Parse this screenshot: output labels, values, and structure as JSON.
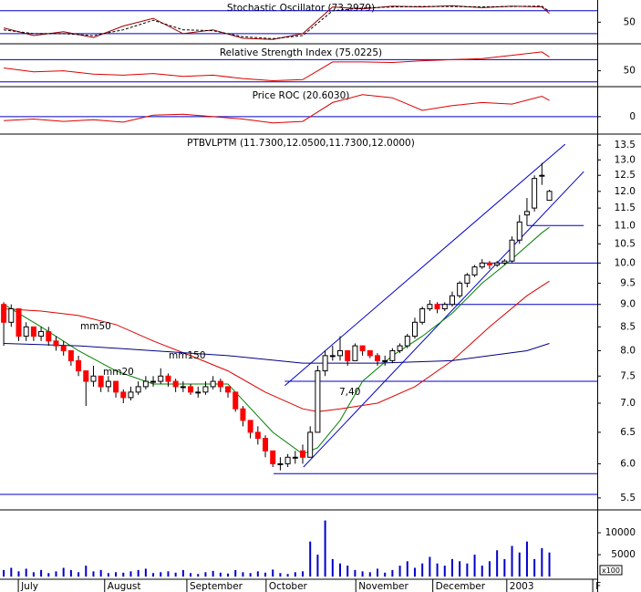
{
  "chart_data": [
    {
      "type": "line",
      "title": "Stochastic Oscillator (73.2979)",
      "xlim": [
        -0.5,
        79.4
      ],
      "ylim": [
        -4,
        108
      ],
      "yticks": [
        50
      ],
      "hlines": [
        80,
        20
      ],
      "hline_color": "#0000cc",
      "x": [
        0,
        4,
        8,
        12,
        16,
        20,
        24,
        28,
        32,
        36,
        40,
        44,
        48,
        52,
        56,
        60,
        64,
        68,
        72,
        73
      ],
      "series": [
        {
          "color": "#990000",
          "dashed": false,
          "values": [
            35,
            15,
            25,
            10,
            40,
            60,
            20,
            30,
            8,
            5,
            20,
            90,
            85,
            92,
            90,
            93,
            88,
            92,
            90,
            73
          ]
        },
        {
          "color": "#000000",
          "dashed": true,
          "values": [
            30,
            20,
            20,
            15,
            30,
            55,
            30,
            28,
            12,
            7,
            15,
            80,
            87,
            90,
            91,
            91,
            90,
            91,
            92,
            78
          ]
        }
      ]
    },
    {
      "type": "line",
      "title": "Relative Strength Index (75.0225)",
      "xlim": [
        -0.5,
        79.4
      ],
      "ylim": [
        23,
        97
      ],
      "yticks": [
        50
      ],
      "hlines": [
        70,
        30
      ],
      "hline_color": "#0000cc",
      "x": [
        0,
        4,
        8,
        12,
        16,
        20,
        24,
        28,
        32,
        36,
        40,
        44,
        48,
        52,
        56,
        60,
        64,
        68,
        72,
        73
      ],
      "series": [
        {
          "color": "#dd0000",
          "dashed": false,
          "values": [
            55,
            48,
            50,
            44,
            42,
            45,
            40,
            42,
            36,
            32,
            34,
            66,
            66,
            65,
            68,
            70,
            72,
            78,
            84,
            75.0225
          ]
        }
      ]
    },
    {
      "type": "line",
      "title": "Price ROC (20.6030)",
      "xlim": [
        -0.5,
        79.4
      ],
      "ylim": [
        -21,
        37
      ],
      "yticks": [
        0
      ],
      "hlines": [
        0
      ],
      "hline_color": "#0000cc",
      "x": [
        0,
        4,
        8,
        12,
        16,
        20,
        24,
        28,
        32,
        36,
        40,
        44,
        48,
        52,
        56,
        60,
        64,
        68,
        72,
        73
      ],
      "series": [
        {
          "color": "#dd0000",
          "dashed": false,
          "values": [
            -5,
            -3,
            -6,
            -4,
            -7,
            2,
            3,
            0,
            -3,
            -8,
            -6,
            18,
            28,
            24,
            8,
            14,
            18,
            16,
            26,
            20.603
          ]
        }
      ]
    },
    {
      "type": "candlestick",
      "title": "PTBVLPTM (11.7300,12.0500,11.7300,12.0000)",
      "log": true,
      "xlim": [
        -0.5,
        79.4
      ],
      "ylim": [
        5.36,
        13.85
      ],
      "yticks": [
        5.5,
        {
          "value": 6,
          "label": "6.0"
        },
        6.5,
        {
          "value": 7,
          "label": "7.0"
        },
        7.5,
        {
          "value": 8,
          "label": "8.0"
        },
        8.5,
        {
          "value": 9,
          "label": "9.0"
        },
        9.5,
        {
          "value": 10,
          "label": "10.0"
        },
        10.5,
        {
          "value": 11,
          "label": "11.0"
        },
        11.5,
        {
          "value": 12,
          "label": "12.0"
        },
        12.5,
        {
          "value": 13,
          "label": "13.0"
        },
        13.5
      ],
      "up_color": "#ffffff",
      "down_color": "#ff0000",
      "open": [
        9.0,
        8.6,
        8.9,
        8.3,
        8.5,
        8.3,
        8.4,
        8.2,
        8.1,
        8.0,
        7.8,
        7.6,
        7.4,
        7.5,
        7.3,
        7.4,
        7.2,
        7.1,
        7.2,
        7.3,
        7.4,
        7.4,
        7.5,
        7.4,
        7.3,
        7.3,
        7.2,
        7.2,
        7.3,
        7.4,
        7.3,
        7.2,
        6.9,
        6.7,
        6.5,
        6.4,
        6.2,
        6.0,
        6.0,
        6.1,
        6.2,
        6.1,
        6.5,
        7.6,
        7.9,
        7.9,
        8.0,
        7.8,
        8.1,
        8.0,
        7.9,
        7.8,
        7.8,
        8.0,
        8.1,
        8.3,
        8.6,
        8.9,
        9.0,
        8.9,
        9.0,
        9.2,
        9.5,
        9.7,
        9.9,
        10.0,
        9.95,
        10.0,
        10.05,
        10.6,
        11.3,
        11.5,
        12.5,
        11.73
      ],
      "high": [
        9.05,
        9.0,
        8.9,
        8.6,
        8.5,
        8.5,
        8.5,
        8.3,
        8.2,
        8.0,
        7.9,
        7.6,
        7.7,
        7.5,
        7.5,
        7.4,
        7.25,
        7.3,
        7.4,
        7.5,
        7.5,
        7.65,
        7.55,
        7.45,
        7.4,
        7.35,
        7.3,
        7.4,
        7.5,
        7.45,
        7.3,
        7.2,
        6.95,
        6.7,
        6.6,
        6.45,
        6.2,
        6.1,
        6.15,
        6.2,
        6.3,
        6.6,
        7.7,
        8.0,
        8.1,
        8.3,
        8.0,
        8.15,
        8.1,
        8.0,
        7.95,
        7.9,
        8.05,
        8.15,
        8.35,
        8.7,
        8.95,
        9.1,
        9.05,
        9.05,
        9.3,
        9.55,
        9.75,
        9.95,
        10.1,
        10.05,
        10.05,
        10.1,
        10.7,
        11.3,
        11.8,
        12.5,
        12.9,
        12.05
      ],
      "low": [
        8.1,
        8.5,
        8.2,
        8.2,
        8.2,
        8.2,
        8.1,
        8.0,
        7.9,
        7.7,
        7.5,
        6.95,
        7.3,
        7.2,
        7.2,
        7.1,
        7.0,
        7.05,
        7.15,
        7.25,
        7.3,
        7.35,
        7.3,
        7.2,
        7.2,
        7.15,
        7.1,
        7.15,
        7.25,
        7.2,
        7.1,
        6.85,
        6.6,
        6.4,
        6.3,
        6.1,
        5.95,
        5.9,
        5.95,
        6.0,
        6.0,
        6.1,
        6.5,
        7.5,
        7.8,
        7.8,
        7.7,
        7.8,
        7.9,
        7.85,
        7.7,
        7.7,
        7.75,
        7.95,
        8.05,
        8.25,
        8.55,
        8.85,
        8.8,
        8.85,
        8.95,
        9.15,
        9.4,
        9.65,
        9.85,
        9.85,
        9.9,
        9.95,
        10.0,
        10.5,
        11.0,
        11.4,
        12.2,
        11.73
      ],
      "close": [
        8.6,
        8.9,
        8.3,
        8.5,
        8.3,
        8.4,
        8.2,
        8.1,
        8.0,
        7.8,
        7.6,
        7.4,
        7.5,
        7.3,
        7.4,
        7.2,
        7.1,
        7.2,
        7.3,
        7.4,
        7.4,
        7.5,
        7.4,
        7.3,
        7.3,
        7.2,
        7.2,
        7.3,
        7.4,
        7.3,
        7.2,
        6.9,
        6.7,
        6.5,
        6.4,
        6.2,
        6.0,
        6.0,
        6.1,
        6.1,
        6.1,
        6.5,
        7.6,
        7.9,
        7.9,
        8.0,
        7.8,
        8.1,
        8.0,
        7.9,
        7.8,
        7.8,
        8.0,
        8.1,
        8.3,
        8.6,
        8.9,
        9.0,
        8.9,
        9.0,
        9.2,
        9.5,
        9.7,
        9.9,
        10.0,
        9.95,
        10.0,
        10.05,
        10.6,
        11.1,
        11.4,
        12.4,
        12.5,
        12.0
      ],
      "overlays": [
        {
          "color": "#008000",
          "x": [
            0,
            5,
            10,
            15,
            20,
            25,
            30,
            36,
            40,
            42,
            45,
            48,
            52,
            56,
            60,
            64,
            68,
            72,
            73
          ],
          "values": [
            9.0,
            8.5,
            8.0,
            7.6,
            7.35,
            7.35,
            7.35,
            6.5,
            6.15,
            6.25,
            6.7,
            7.4,
            7.9,
            8.3,
            8.8,
            9.5,
            10.1,
            10.8,
            10.95
          ]
        },
        {
          "color": "#dd0000",
          "x": [
            0,
            5,
            10,
            15,
            20,
            25,
            30,
            35,
            40,
            42,
            45,
            50,
            55,
            60,
            65,
            70,
            73
          ],
          "values": [
            8.9,
            8.85,
            8.75,
            8.55,
            8.2,
            7.9,
            7.6,
            7.2,
            6.9,
            6.85,
            6.9,
            7.0,
            7.3,
            7.8,
            8.5,
            9.2,
            9.55
          ]
        },
        {
          "color": "#000080",
          "x": [
            0,
            10,
            20,
            30,
            40,
            50,
            60,
            65,
            70,
            73
          ],
          "values": [
            8.15,
            8.1,
            8.0,
            7.9,
            7.75,
            7.75,
            7.8,
            7.9,
            8.0,
            8.15
          ]
        }
      ],
      "trendlines": [
        {
          "x": [
            37.6,
            75.1
          ],
          "y": [
            7.32,
            13.53
          ]
        },
        {
          "x": [
            40.1,
            77.6
          ],
          "y": [
            5.95,
            12.62
          ]
        }
      ],
      "hlines": [
        {
          "y": 11.0,
          "x": [
            70,
            77.6
          ]
        },
        {
          "y": 10.0,
          "x": [
            64,
            79.4
          ]
        },
        {
          "y": 9.0,
          "x": [
            58,
            79.4
          ]
        },
        {
          "y": 7.4,
          "x": [
            37.6,
            79.4
          ]
        },
        {
          "y": 5.85,
          "x": [
            36.1,
            79.4
          ]
        },
        {
          "y": 5.55,
          "x": [
            -0.5,
            79.4
          ]
        }
      ],
      "line_color": "#0000cc",
      "annotations": [
        "mm50",
        "mm150",
        "mm20",
        "7,40"
      ]
    },
    {
      "type": "bar",
      "xlim": [
        -0.5,
        79.4
      ],
      "ylim": [
        -600,
        15000
      ],
      "yticks": [
        5000,
        10000
      ],
      "color": "#0000cc",
      "unit_label": "x100",
      "values": [
        1500,
        2000,
        1200,
        1800,
        1000,
        1500,
        800,
        1200,
        2000,
        1500,
        1000,
        2500,
        1200,
        1500,
        800,
        1000,
        900,
        1200,
        1500,
        1800,
        800,
        1000,
        1200,
        900,
        1500,
        800,
        600,
        1000,
        1300,
        900,
        700,
        1500,
        1000,
        800,
        1200,
        900,
        1600,
        800,
        600,
        1000,
        1200,
        8000,
        5000,
        12800,
        4000,
        3000,
        2500,
        1500,
        1200,
        1000,
        1800,
        900,
        1500,
        2500,
        3500,
        2000,
        3000,
        4500,
        3000,
        2500,
        4000,
        3500,
        3000,
        5000,
        2500,
        3500,
        6000,
        4000,
        7000,
        5500,
        8000,
        4000,
        6500,
        5500
      ],
      "xticks": [
        {
          "value": 1.95,
          "label": "July"
        },
        {
          "value": 13.5,
          "label": "August"
        },
        {
          "value": 24.5,
          "label": "September"
        },
        {
          "value": 35.1,
          "label": "October"
        },
        {
          "value": 47.1,
          "label": "November"
        },
        {
          "value": 57.4,
          "label": "December"
        },
        {
          "value": 67.3,
          "label": "2003"
        },
        {
          "value": 78.8,
          "label": "F"
        }
      ]
    }
  ]
}
